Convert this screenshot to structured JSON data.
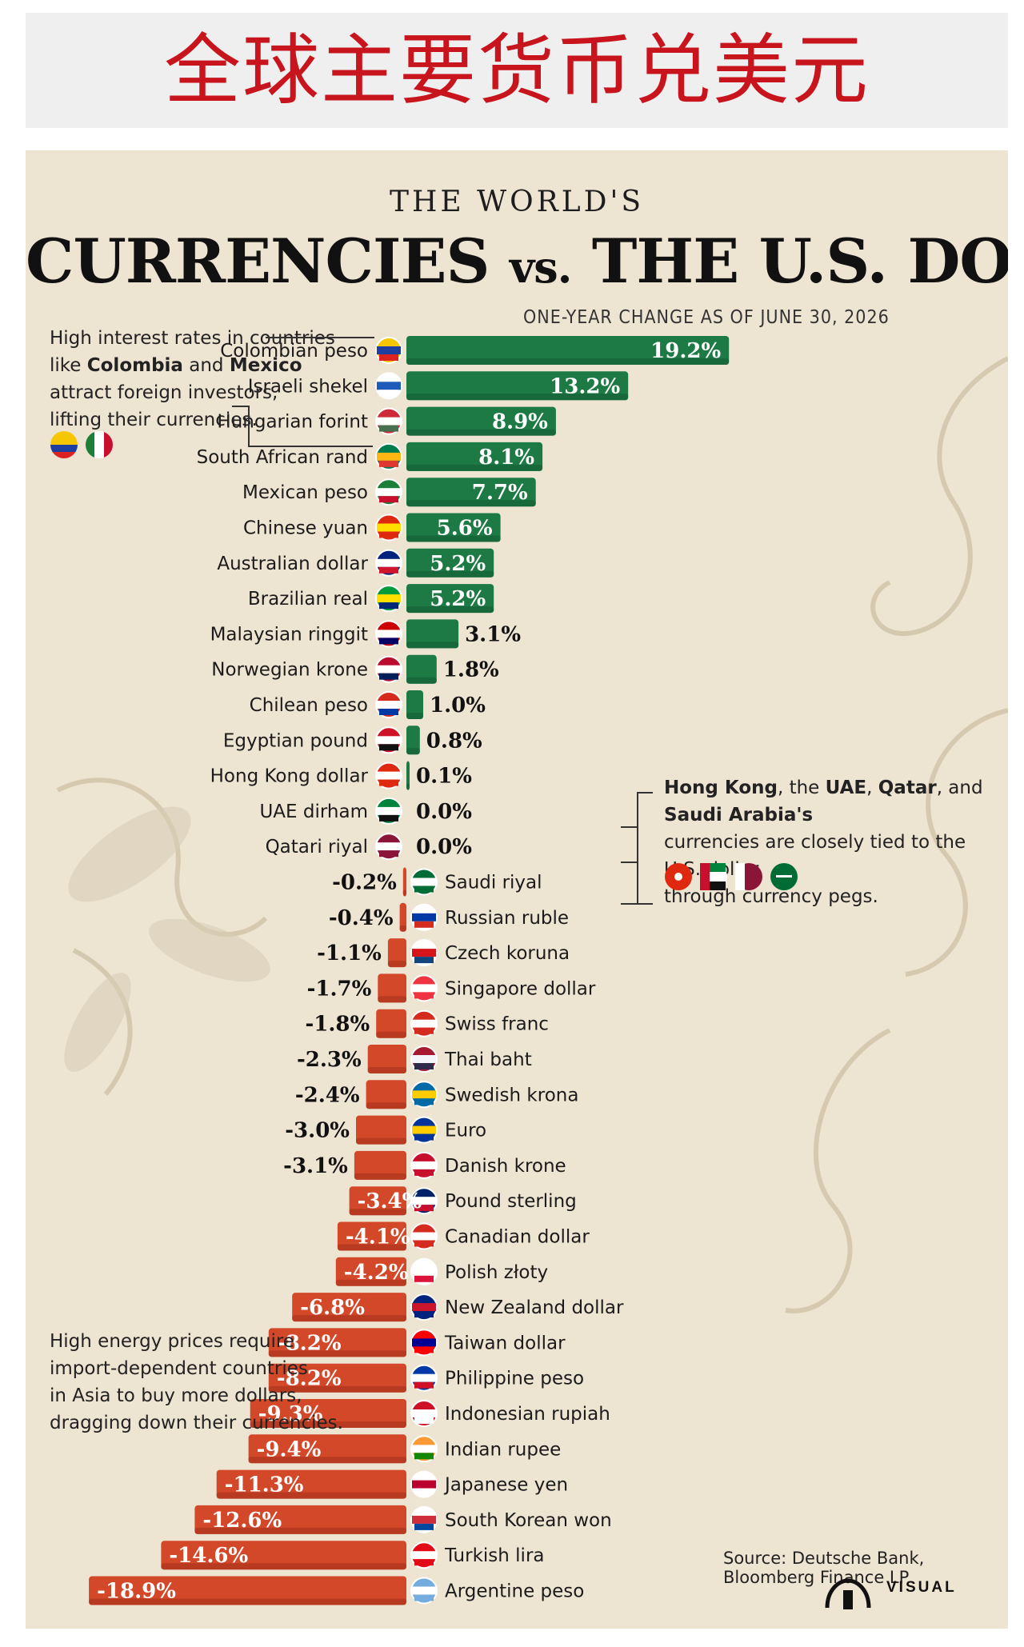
{
  "header": {
    "cn_title": "全球主要货币兑美元"
  },
  "poster": {
    "kicker": "THE WORLD'S",
    "title_a": "CURRENCIES",
    "title_vs": "vs.",
    "title_b": "THE U.S. DOLLAR",
    "subhead": "ONE-YEAR CHANGE AS OF JUNE 30, 2026",
    "source": "Source: Deutsche Bank, Bloomberg Finance LP",
    "logo_text": "VISUAL"
  },
  "annotations": {
    "top_left": {
      "lines": [
        "High interest rates in countries",
        "like [Colombia] and [Mexico]",
        "attract foreign investors,",
        "lifting their currencies."
      ]
    },
    "right": {
      "lines": [
        "[Hong Kong], the [UAE], [Qatar], and [Saudi Arabia's]",
        "currencies are closely tied to the U.S. dollar",
        "through currency pegs."
      ]
    },
    "bottom_left": {
      "lines": [
        "High energy prices require",
        "import-dependent countries",
        "in Asia to buy more dollars,",
        "dragging down their currencies."
      ]
    }
  },
  "colors": {
    "positive": "#1d7a45",
    "negative": "#d4482a",
    "positive_dark": "#145c33",
    "negative_dark": "#9c2c17"
  },
  "chart_data": {
    "type": "bar",
    "orientation": "horizontal",
    "title": "CURRENCIES vs. THE U.S. DOLLAR",
    "subtitle": "ONE-YEAR CHANGE AS OF JUNE 30, 2026",
    "unit": "%",
    "categories": [
      "Colombian peso",
      "Israeli shekel",
      "Hungarian forint",
      "South African rand",
      "Mexican peso",
      "Chinese yuan",
      "Australian dollar",
      "Brazilian real",
      "Malaysian ringgit",
      "Norwegian krone",
      "Chilean peso",
      "Egyptian pound",
      "Hong Kong dollar",
      "UAE dirham",
      "Qatari riyal",
      "Saudi riyal",
      "Russian ruble",
      "Czech koruna",
      "Singapore dollar",
      "Swiss franc",
      "Thai baht",
      "Swedish krona",
      "Euro",
      "Danish krone",
      "Pound sterling",
      "Canadian dollar",
      "Polish złoty",
      "New Zealand dollar",
      "Taiwan dollar",
      "Philippine peso",
      "Indonesian rupiah",
      "Indian rupee",
      "Japanese yen",
      "South Korean won",
      "Turkish lira",
      "Argentine peso"
    ],
    "values": [
      19.2,
      13.2,
      8.9,
      8.1,
      7.7,
      5.6,
      5.2,
      5.2,
      3.1,
      1.8,
      1.0,
      0.8,
      0.1,
      0.0,
      0.0,
      -0.2,
      -0.4,
      -1.1,
      -1.7,
      -1.8,
      -2.3,
      -2.4,
      -3.0,
      -3.1,
      -3.4,
      -4.1,
      -4.2,
      -6.8,
      -8.2,
      -8.2,
      -9.3,
      -9.4,
      -11.3,
      -12.6,
      -14.6,
      -18.9
    ],
    "labels": [
      "19.2%",
      "13.2%",
      "8.9%",
      "8.1%",
      "7.7%",
      "5.6%",
      "5.2%",
      "5.2%",
      "3.1%",
      "1.8%",
      "1.0%",
      "0.8%",
      "0.1%",
      "0.0%",
      "0.0%",
      "-0.2%",
      "-0.4%",
      "-1.1%",
      "-1.7%",
      "-1.8%",
      "-2.3%",
      "-2.4%",
      "-3.0%",
      "-3.1%",
      "-3.4%",
      "-4.1%",
      "-4.2%",
      "-6.8%",
      "-8.2%",
      "-8.2%",
      "-9.3%",
      "-9.4%",
      "-11.3%",
      "-12.6%",
      "-14.6%",
      "-18.9%"
    ],
    "flags": [
      "co",
      "il",
      "hu",
      "za",
      "mx",
      "cn",
      "au",
      "br",
      "my",
      "no",
      "cl",
      "eg",
      "hk",
      "ae",
      "qa",
      "sa",
      "ru",
      "cz",
      "sg",
      "ch",
      "th",
      "se",
      "eu",
      "dk",
      "gb",
      "ca",
      "pl",
      "nz",
      "tw",
      "ph",
      "id",
      "in",
      "jp",
      "kr",
      "tr",
      "ar"
    ],
    "grid": false,
    "legend": "none"
  }
}
